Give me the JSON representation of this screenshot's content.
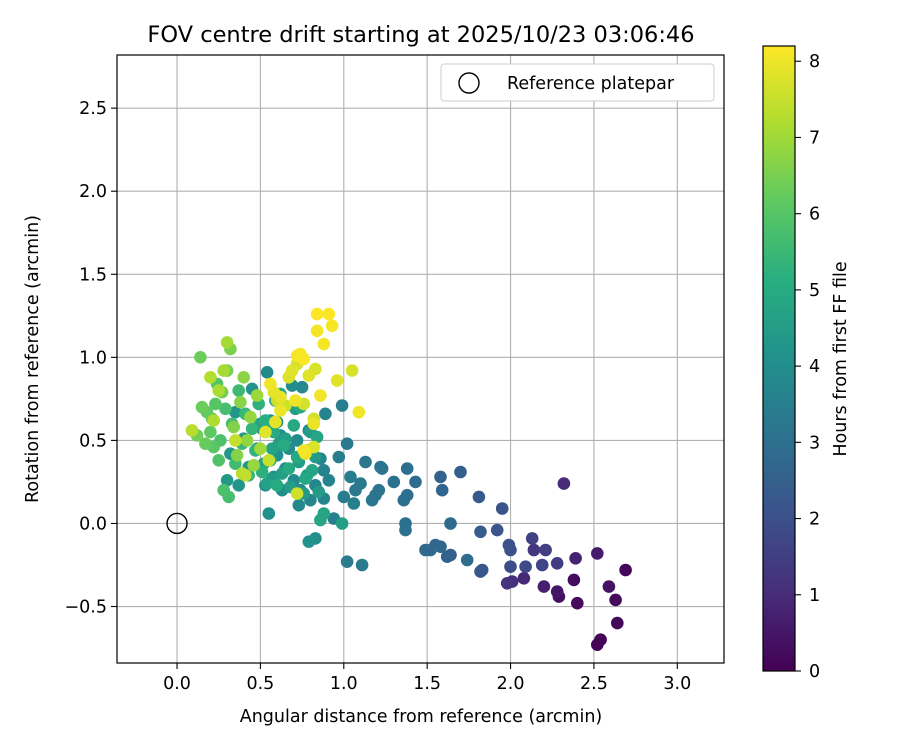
{
  "chart_data": {
    "type": "scatter",
    "title": "FOV centre drift starting at 2025/10/23 03:06:46",
    "xlabel": "Angular distance from reference (arcmin)",
    "ylabel": "Rotation from reference (arcmin)",
    "xlim": [
      -0.36,
      3.28
    ],
    "ylim": [
      -0.84,
      2.82
    ],
    "xticks": [
      0.0,
      0.5,
      1.0,
      1.5,
      2.0,
      2.5,
      3.0
    ],
    "xtick_labels": [
      "0.0",
      "0.5",
      "1.0",
      "1.5",
      "2.0",
      "2.5",
      "3.0"
    ],
    "yticks": [
      -0.5,
      0.0,
      0.5,
      1.0,
      1.5,
      2.0,
      2.5
    ],
    "ytick_labels": [
      "−0.5",
      "0.0",
      "0.5",
      "1.0",
      "1.5",
      "2.0",
      "2.5"
    ],
    "grid": true,
    "legend": {
      "placement": "upper-right",
      "entries": [
        {
          "label": "Reference platepar",
          "marker": "open-circle"
        }
      ]
    },
    "reference_point": {
      "x": 0.0,
      "y": 0.0
    },
    "colorbar": {
      "label": "Hours from first FF file",
      "colormap": "viridis",
      "range": [
        0,
        8.2
      ],
      "ticks": [
        0,
        1,
        2,
        3,
        4,
        5,
        6,
        7,
        8
      ]
    },
    "points": [
      [
        2.54,
        -0.7,
        0.05
      ],
      [
        2.52,
        -0.73,
        0.08
      ],
      [
        2.64,
        -0.6,
        0.12
      ],
      [
        2.69,
        -0.28,
        0.15
      ],
      [
        2.63,
        -0.46,
        0.18
      ],
      [
        2.4,
        -0.48,
        0.22
      ],
      [
        2.38,
        -0.34,
        0.26
      ],
      [
        2.29,
        -0.44,
        0.33
      ],
      [
        2.59,
        -0.38,
        0.4
      ],
      [
        2.28,
        -0.41,
        0.5
      ],
      [
        2.52,
        -0.18,
        0.6
      ],
      [
        2.2,
        -0.38,
        0.7
      ],
      [
        2.39,
        -0.21,
        0.8
      ],
      [
        2.08,
        -0.33,
        0.9
      ],
      [
        2.32,
        0.24,
        1.0
      ],
      [
        2.01,
        -0.35,
        1.1
      ],
      [
        1.98,
        -0.36,
        1.2
      ],
      [
        2.14,
        -0.16,
        1.3
      ],
      [
        2.28,
        -0.24,
        1.4
      ],
      [
        2.21,
        -0.16,
        1.5
      ],
      [
        2.13,
        -0.09,
        1.6
      ],
      [
        2.19,
        -0.25,
        1.7
      ],
      [
        2.09,
        -0.26,
        1.8
      ],
      [
        2.0,
        -0.26,
        1.9
      ],
      [
        2.0,
        -0.16,
        2.0
      ],
      [
        1.99,
        -0.13,
        2.05
      ],
      [
        1.95,
        0.09,
        2.1
      ],
      [
        1.92,
        -0.04,
        2.15
      ],
      [
        1.83,
        -0.28,
        2.2
      ],
      [
        1.82,
        -0.29,
        2.25
      ],
      [
        1.81,
        0.16,
        2.3
      ],
      [
        1.82,
        -0.05,
        2.4
      ],
      [
        1.7,
        0.31,
        2.45
      ],
      [
        1.64,
        -0.19,
        2.5
      ],
      [
        1.62,
        -0.2,
        2.55
      ],
      [
        1.58,
        0.28,
        2.6
      ],
      [
        1.59,
        0.2,
        2.65
      ],
      [
        1.58,
        -0.14,
        2.7
      ],
      [
        1.55,
        -0.13,
        2.72
      ],
      [
        1.52,
        -0.16,
        2.75
      ],
      [
        1.49,
        -0.16,
        2.8
      ],
      [
        1.64,
        0.0,
        2.85
      ],
      [
        1.74,
        -0.22,
        2.9
      ],
      [
        1.43,
        0.25,
        2.92
      ],
      [
        1.38,
        0.33,
        2.95
      ],
      [
        1.38,
        0.17,
        2.98
      ],
      [
        1.36,
        0.14,
        3.0
      ],
      [
        1.37,
        0.0,
        3.02
      ],
      [
        1.37,
        -0.04,
        3.05
      ],
      [
        1.3,
        0.25,
        3.08
      ],
      [
        1.23,
        0.33,
        3.1
      ],
      [
        1.21,
        0.2,
        3.12
      ],
      [
        1.22,
        0.34,
        3.15
      ],
      [
        1.19,
        0.17,
        3.18
      ],
      [
        1.17,
        0.14,
        3.2
      ],
      [
        1.13,
        0.37,
        3.25
      ],
      [
        1.1,
        0.24,
        3.28
      ],
      [
        1.07,
        0.2,
        3.3
      ],
      [
        1.02,
        0.48,
        3.33
      ],
      [
        1.11,
        -0.25,
        3.36
      ],
      [
        1.02,
        -0.23,
        3.38
      ],
      [
        1.04,
        0.28,
        3.4
      ],
      [
        1.0,
        0.16,
        3.43
      ],
      [
        0.99,
        0.71,
        3.46
      ],
      [
        0.97,
        0.4,
        3.5
      ],
      [
        0.94,
        0.03,
        3.55
      ],
      [
        1.06,
        0.12,
        3.58
      ],
      [
        0.91,
        0.26,
        3.6
      ],
      [
        0.89,
        0.66,
        3.62
      ],
      [
        0.88,
        0.32,
        3.65
      ],
      [
        0.88,
        0.15,
        3.68
      ],
      [
        0.86,
        0.39,
        3.7
      ],
      [
        0.83,
        0.23,
        3.72
      ],
      [
        0.8,
        0.14,
        3.75
      ],
      [
        0.79,
        0.56,
        3.78
      ],
      [
        0.75,
        0.82,
        3.8
      ],
      [
        0.74,
        0.2,
        3.82
      ],
      [
        0.73,
        0.11,
        3.85
      ],
      [
        0.54,
        0.91,
        3.88
      ],
      [
        0.72,
        0.5,
        3.9
      ],
      [
        0.7,
        0.26,
        3.92
      ],
      [
        0.69,
        0.83,
        3.94
      ],
      [
        0.67,
        0.45,
        3.96
      ],
      [
        0.65,
        0.33,
        3.98
      ],
      [
        0.63,
        0.2,
        4.0
      ],
      [
        0.83,
        -0.09,
        4.02
      ],
      [
        0.62,
        0.53,
        4.04
      ],
      [
        0.6,
        0.41,
        4.06
      ],
      [
        0.55,
        0.06,
        4.08
      ],
      [
        0.58,
        0.28,
        4.1
      ],
      [
        0.79,
        -0.11,
        4.12
      ],
      [
        0.56,
        0.62,
        4.14
      ],
      [
        0.53,
        0.23,
        4.16
      ],
      [
        0.51,
        0.57,
        4.18
      ],
      [
        0.48,
        0.45,
        4.2
      ],
      [
        0.45,
        0.81,
        4.22
      ],
      [
        0.43,
        0.34,
        4.24
      ],
      [
        0.4,
        0.51,
        4.26
      ],
      [
        0.37,
        0.23,
        4.28
      ],
      [
        0.35,
        0.67,
        4.3
      ],
      [
        0.32,
        0.42,
        4.32
      ],
      [
        0.3,
        0.26,
        4.34
      ],
      [
        0.6,
        0.61,
        4.36
      ],
      [
        0.57,
        0.27,
        4.38
      ],
      [
        0.55,
        0.58,
        4.4
      ],
      [
        0.83,
        0.4,
        4.42
      ],
      [
        0.85,
        0.19,
        4.44
      ],
      [
        0.78,
        0.29,
        4.46
      ],
      [
        0.8,
        0.55,
        4.48
      ],
      [
        0.76,
        0.18,
        4.5
      ],
      [
        0.73,
        0.37,
        4.52
      ],
      [
        0.71,
        0.69,
        4.54
      ],
      [
        0.68,
        0.22,
        4.56
      ],
      [
        0.99,
        0.0,
        4.58
      ],
      [
        0.65,
        0.51,
        4.6
      ],
      [
        0.63,
        0.3,
        4.62
      ],
      [
        0.61,
        0.48,
        4.64
      ],
      [
        0.59,
        0.74,
        4.66
      ],
      [
        0.57,
        0.45,
        4.68
      ],
      [
        0.54,
        0.24,
        4.7
      ],
      [
        0.52,
        0.36,
        4.72
      ],
      [
        0.5,
        0.6,
        4.74
      ],
      [
        0.86,
        0.02,
        4.76
      ],
      [
        0.88,
        0.06,
        4.78
      ],
      [
        0.84,
        0.52,
        4.8
      ],
      [
        0.81,
        0.32,
        4.82
      ],
      [
        0.79,
        0.44,
        4.84
      ],
      [
        0.77,
        0.27,
        4.86
      ],
      [
        0.74,
        0.7,
        4.88
      ],
      [
        0.72,
        0.4,
        4.9
      ],
      [
        0.7,
        0.59,
        4.92
      ],
      [
        0.67,
        0.33,
        4.94
      ],
      [
        0.64,
        0.47,
        4.96
      ],
      [
        0.62,
        0.78,
        4.98
      ],
      [
        0.6,
        0.23,
        5.0
      ],
      [
        0.58,
        0.55,
        5.05
      ],
      [
        0.56,
        0.38,
        5.1
      ],
      [
        0.53,
        0.62,
        5.15
      ],
      [
        0.51,
        0.31,
        5.2
      ],
      [
        0.49,
        0.72,
        5.25
      ],
      [
        0.47,
        0.44,
        5.3
      ],
      [
        0.45,
        0.57,
        5.35
      ],
      [
        0.43,
        0.29,
        5.4
      ],
      [
        0.41,
        0.66,
        5.45
      ],
      [
        0.39,
        0.48,
        5.5
      ],
      [
        0.37,
        0.8,
        5.55
      ],
      [
        0.35,
        0.36,
        5.6
      ],
      [
        0.33,
        0.6,
        5.65
      ],
      [
        0.31,
        0.16,
        5.7
      ],
      [
        0.29,
        0.69,
        5.75
      ],
      [
        0.28,
        0.2,
        5.8
      ],
      [
        0.26,
        0.5,
        5.85
      ],
      [
        0.25,
        0.38,
        5.9
      ],
      [
        0.24,
        0.84,
        5.95
      ],
      [
        0.23,
        0.72,
        6.0
      ],
      [
        0.22,
        0.46,
        6.05
      ],
      [
        0.21,
        0.63,
        6.1
      ],
      [
        0.2,
        0.55,
        6.15
      ],
      [
        0.18,
        0.67,
        6.2
      ],
      [
        0.17,
        0.48,
        6.25
      ],
      [
        0.15,
        0.7,
        6.3
      ],
      [
        0.14,
        1.0,
        6.35
      ],
      [
        0.12,
        0.53,
        6.4
      ],
      [
        0.27,
        0.79,
        6.45
      ],
      [
        0.3,
        0.92,
        6.5
      ],
      [
        0.32,
        1.05,
        6.55
      ],
      [
        0.34,
        0.58,
        6.6
      ],
      [
        0.36,
        0.41,
        6.65
      ],
      [
        0.38,
        0.73,
        6.7
      ],
      [
        0.4,
        0.88,
        6.75
      ],
      [
        0.42,
        0.5,
        6.8
      ],
      [
        0.44,
        0.64,
        6.85
      ],
      [
        0.46,
        0.35,
        6.9
      ],
      [
        0.48,
        0.77,
        6.95
      ],
      [
        0.5,
        0.45,
        7.0
      ],
      [
        0.3,
        1.09,
        7.05
      ],
      [
        0.28,
        0.92,
        7.1
      ],
      [
        0.25,
        0.8,
        7.15
      ],
      [
        0.22,
        0.62,
        7.2
      ],
      [
        0.2,
        0.88,
        7.25
      ],
      [
        0.09,
        0.56,
        7.3
      ],
      [
        0.39,
        0.3,
        7.35
      ],
      [
        0.41,
        0.29,
        7.4
      ],
      [
        0.35,
        0.5,
        7.45
      ],
      [
        0.55,
        0.38,
        7.5
      ],
      [
        0.6,
        0.74,
        7.55
      ],
      [
        0.65,
        0.71,
        7.6
      ],
      [
        0.72,
        0.18,
        7.62
      ],
      [
        0.76,
        0.72,
        7.65
      ],
      [
        0.82,
        0.63,
        7.68
      ],
      [
        1.05,
        0.92,
        7.7
      ],
      [
        0.83,
        0.93,
        7.72
      ],
      [
        0.72,
        0.96,
        7.74
      ],
      [
        0.67,
        0.88,
        7.76
      ],
      [
        0.82,
        0.46,
        7.78
      ],
      [
        0.79,
        0.89,
        7.8
      ],
      [
        0.69,
        0.92,
        7.82
      ],
      [
        0.53,
        0.55,
        7.84
      ],
      [
        0.96,
        0.86,
        7.86
      ],
      [
        0.58,
        0.79,
        7.88
      ],
      [
        0.59,
        0.61,
        7.9
      ],
      [
        0.62,
        0.76,
        7.92
      ],
      [
        0.82,
        0.6,
        7.94
      ],
      [
        0.77,
        0.42,
        7.96
      ],
      [
        0.71,
        0.74,
        7.98
      ],
      [
        0.62,
        0.68,
        8.0
      ],
      [
        0.56,
        0.84,
        8.02
      ],
      [
        1.09,
        0.67,
        8.04
      ],
      [
        0.86,
        0.77,
        8.06
      ],
      [
        0.84,
        1.16,
        8.08
      ],
      [
        0.93,
        1.19,
        8.1
      ],
      [
        0.88,
        1.08,
        8.12
      ],
      [
        0.72,
        1.01,
        8.14
      ],
      [
        0.76,
        0.99,
        8.16
      ],
      [
        0.84,
        1.26,
        8.18
      ],
      [
        0.91,
        1.26,
        8.18
      ],
      [
        0.74,
        1.02,
        8.1
      ],
      [
        0.76,
        0.44,
        8.12
      ]
    ]
  }
}
